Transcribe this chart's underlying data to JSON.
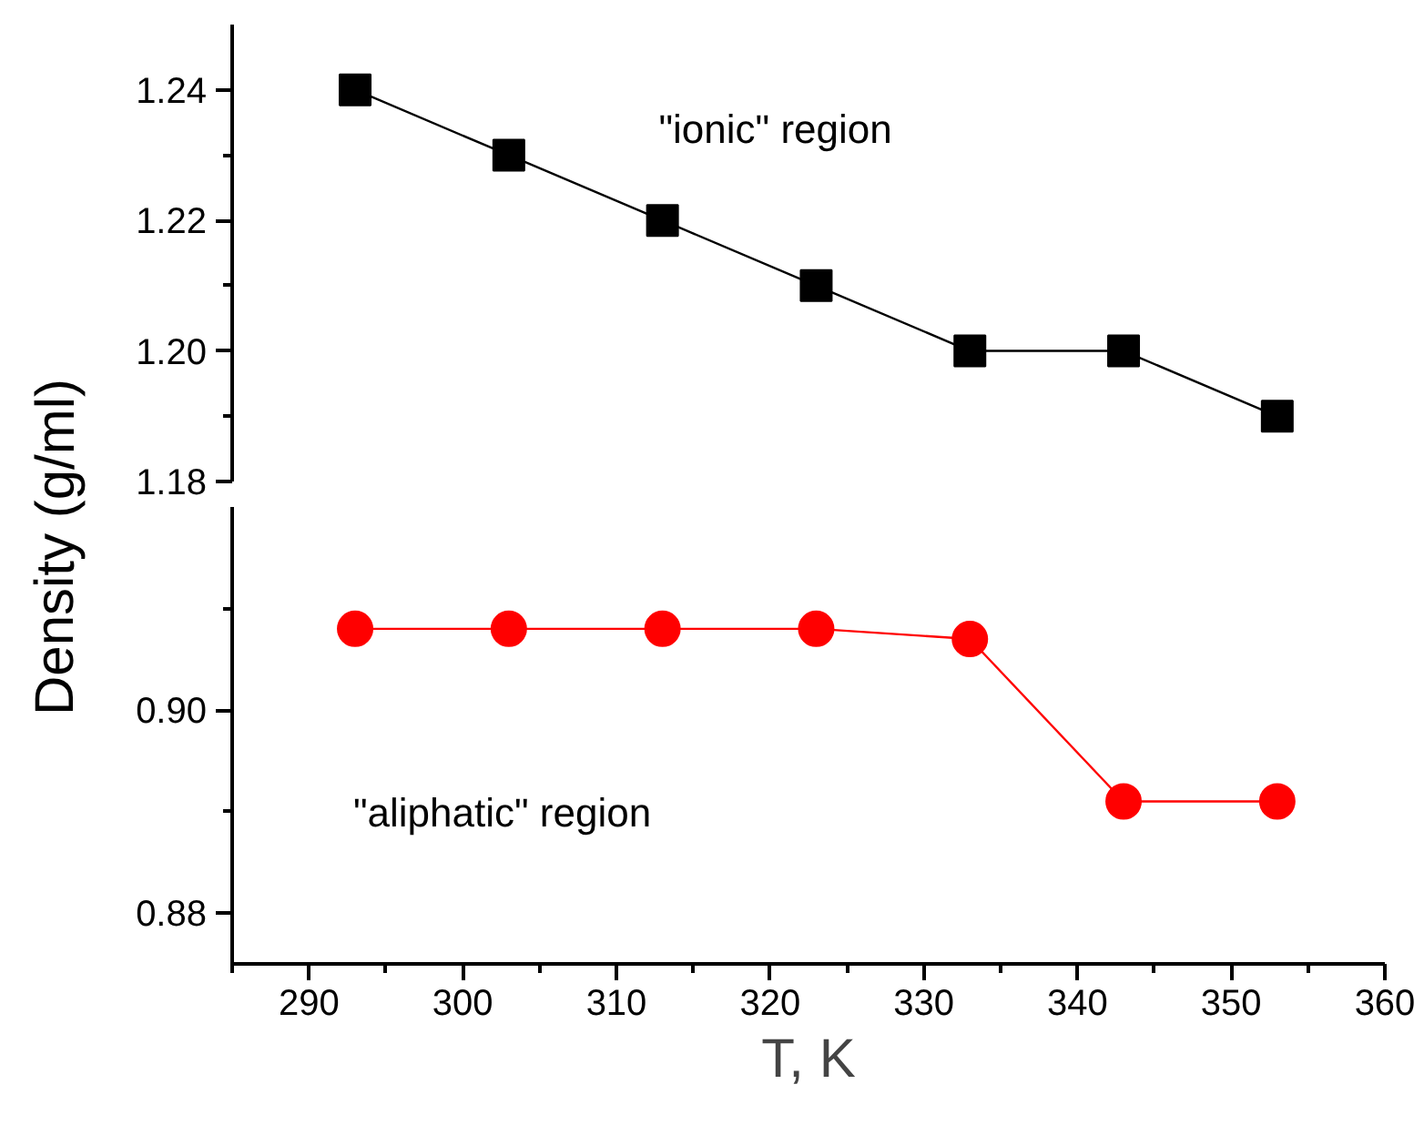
{
  "chart_data": [
    {
      "type": "line",
      "x": [
        293,
        303,
        313,
        323,
        333,
        343,
        353
      ],
      "marker": "square",
      "line_style": "solid",
      "tick_labels": "y",
      "grid": false,
      "series": [
        {
          "color": "#000000",
          "values": [
            1.24,
            1.23,
            1.22,
            1.21,
            1.2,
            1.2,
            1.19
          ]
        }
      ],
      "xlim": [
        285,
        360
      ],
      "ylim": [
        1.18,
        1.25
      ],
      "yticks": [
        1.18,
        {
          "value": 1.19,
          "label": null
        },
        {
          "value": 1.2,
          "label": "1.20"
        },
        {
          "value": 1.21,
          "label": null
        },
        1.22,
        {
          "value": 1.23,
          "label": null
        },
        1.24
      ],
      "annotations": [
        "\"ionic\" region"
      ]
    },
    {
      "type": "line",
      "x": [
        293,
        303,
        313,
        323,
        333,
        343,
        353
      ],
      "marker": "circle",
      "line_style": "solid",
      "grid": false,
      "series": [
        {
          "color": "#ff0000",
          "values": [
            0.908,
            0.908,
            0.908,
            0.908,
            0.907,
            0.891,
            0.891
          ]
        }
      ],
      "xlim": [
        285,
        360
      ],
      "ylim": [
        0.875,
        0.92
      ],
      "xticks": [
        {
          "value": 285,
          "label": null
        },
        290,
        {
          "value": 295,
          "label": null
        },
        300,
        {
          "value": 305,
          "label": null
        },
        310,
        {
          "value": 315,
          "label": null
        },
        320,
        {
          "value": 325,
          "label": null
        },
        330,
        {
          "value": 335,
          "label": null
        },
        340,
        {
          "value": 345,
          "label": null
        },
        350,
        {
          "value": 355,
          "label": null
        },
        360
      ],
      "yticks": [
        0.88,
        {
          "value": 0.89,
          "label": null
        },
        {
          "value": 0.9,
          "label": "0.90"
        },
        {
          "value": 0.91,
          "label": null
        }
      ],
      "xlabel": "T, K",
      "ylabel": "Density (g/ml)",
      "annotations": [
        "\"aliphatic\" region"
      ]
    }
  ]
}
